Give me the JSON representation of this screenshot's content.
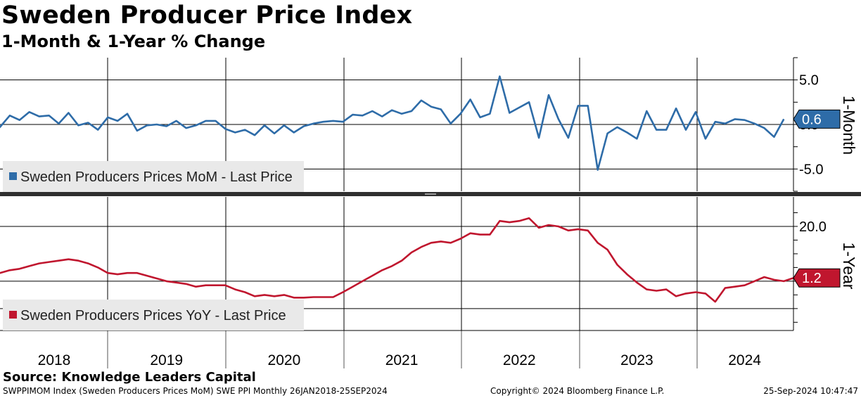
{
  "header": {
    "title": "Sweden Producer Price Index",
    "subtitle": "1-Month & 1-Year % Change"
  },
  "footer": {
    "source": "Source: Knowledge Leaders Capital",
    "ticker_line": "SWPPIMOM Index (Sweden Producers Prices MoM) SWE PPI  Monthly 26JAN2018-25SEP2024",
    "copyright": "Copyright© 2024 Bloomberg Finance L.P.",
    "timestamp": "25-Sep-2024 10:47:47"
  },
  "colors": {
    "mom": "#2e6ca8",
    "yoy": "#c0162e",
    "grid": "#000000",
    "legend_bg": "#e9e9e9"
  },
  "chart_data": [
    {
      "type": "line",
      "name": "top-panel",
      "series": [
        {
          "name": "Sweden Producers Prices MoM - Last Price"
        }
      ],
      "legend": "Sweden Producers Prices MoM - Last Price",
      "legend_placement": "bottom-left",
      "axis_label": "1-Month",
      "yticks": [
        5.0,
        0,
        -5.0
      ],
      "ytick_labels": [
        "5.0",
        "0.0",
        "-5.0"
      ],
      "ylim": [
        -7.5,
        7.5
      ],
      "last_value": 0.6,
      "last_value_label": "0.6",
      "grid": true,
      "x_start": "2018-01",
      "values": [
        0.8,
        -0.3,
        1.0,
        0.5,
        1.4,
        0.9,
        1.0,
        0.1,
        1.3,
        -0.1,
        0.2,
        -0.6,
        0.8,
        0.4,
        1.2,
        -0.7,
        -0.1,
        0.0,
        -0.2,
        0.4,
        -0.4,
        -0.1,
        0.4,
        0.4,
        -0.5,
        -0.9,
        -0.6,
        -1.2,
        -0.1,
        -1.0,
        -0.1,
        -0.9,
        -0.2,
        0.1,
        0.3,
        0.4,
        0.3,
        1.1,
        1.0,
        1.5,
        0.9,
        1.6,
        1.2,
        1.5,
        2.7,
        2.0,
        1.7,
        0.1,
        1.2,
        2.8,
        0.8,
        1.2,
        5.4,
        1.3,
        1.9,
        2.5,
        -1.5,
        3.3,
        0.6,
        -1.5,
        2.1,
        2.1,
        -5.1,
        -1.0,
        -0.3,
        -0.9,
        -1.6,
        1.5,
        -0.6,
        -0.6,
        1.8,
        -0.6,
        1.4,
        -1.6,
        0.3,
        0.1,
        0.6,
        0.5,
        0.1,
        -0.4,
        -1.4,
        0.6
      ]
    },
    {
      "type": "line",
      "name": "bottom-panel",
      "series": [
        {
          "name": "Sweden Producers Prices YoY - Last Price"
        }
      ],
      "legend": "Sweden Producers Prices YoY - Last Price",
      "legend_placement": "bottom-left",
      "axis_label": "1-Year",
      "yticks": [
        20.0
      ],
      "ytick_labels": [
        "20.0"
      ],
      "ylim": [
        -18,
        30
      ],
      "last_value": 1.2,
      "last_value_label": "1.2",
      "grid": true,
      "x_start": "2018-01",
      "x_tick_labels": [
        "2018",
        "2019",
        "2020",
        "2021",
        "2022",
        "2023",
        "2024"
      ],
      "values": [
        3.0,
        3.0,
        4.0,
        4.5,
        5.5,
        6.5,
        7.0,
        7.5,
        8.0,
        7.5,
        6.5,
        5.0,
        3.0,
        2.5,
        3.0,
        3.0,
        2.0,
        1.0,
        0.0,
        -0.5,
        -1.0,
        -2.0,
        -1.5,
        -1.5,
        -1.5,
        -3.0,
        -4.0,
        -5.5,
        -5.0,
        -5.5,
        -5.0,
        -6.0,
        -6.0,
        -5.8,
        -5.8,
        -5.8,
        -4.0,
        -2.0,
        0.0,
        2.0,
        4.0,
        5.5,
        7.5,
        10.5,
        12.5,
        14.0,
        14.5,
        14.0,
        15.5,
        17.5,
        17.0,
        17.0,
        22.0,
        21.5,
        22.0,
        23.0,
        19.5,
        20.5,
        20.0,
        18.5,
        19.0,
        18.5,
        14.0,
        11.5,
        6.0,
        2.5,
        -0.5,
        -3.0,
        -3.5,
        -3.0,
        -5.5,
        -4.5,
        -4.0,
        -4.5,
        -7.5,
        -2.5,
        -2.0,
        -1.5,
        0.0,
        1.5,
        0.5,
        0.0,
        1.2
      ]
    }
  ]
}
